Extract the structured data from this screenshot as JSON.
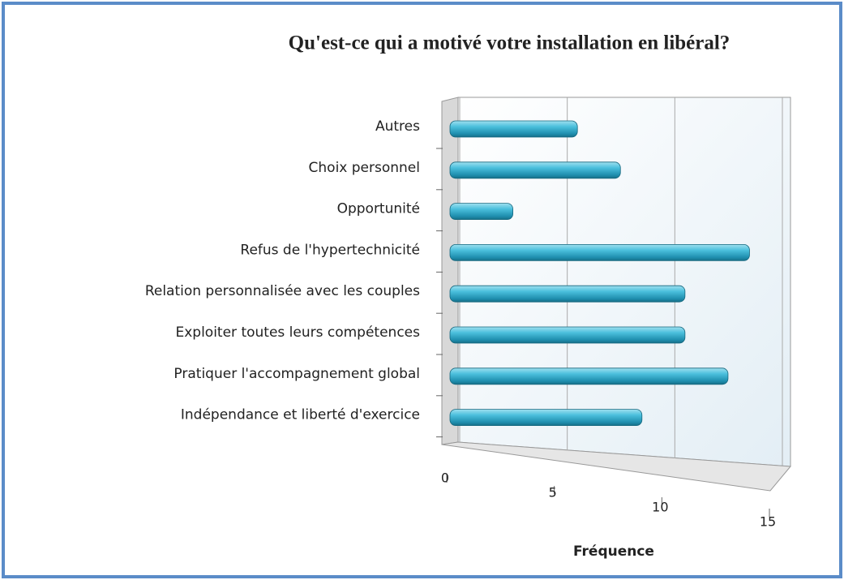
{
  "chart_data": {
    "type": "bar",
    "orientation": "horizontal",
    "title": "Qu'est-ce qui a motivé votre installation en libéral?",
    "categories": [
      "Autres",
      "Choix personnel",
      "Opportunité",
      "Refus de l'hypertechnicité",
      "Relation personnalisée avec les couples",
      "Exploiter toutes leurs compétences",
      "Pratiquer l'accompagnement global",
      "Indépendance et liberté d'exercice"
    ],
    "values": [
      6,
      8,
      3,
      14,
      11,
      11,
      13,
      9
    ],
    "color": "#3bb0d0",
    "xlabel": "Fréquence",
    "xlim": [
      0,
      15
    ],
    "xticks": [
      0,
      5,
      10,
      15
    ],
    "grid": true
  }
}
